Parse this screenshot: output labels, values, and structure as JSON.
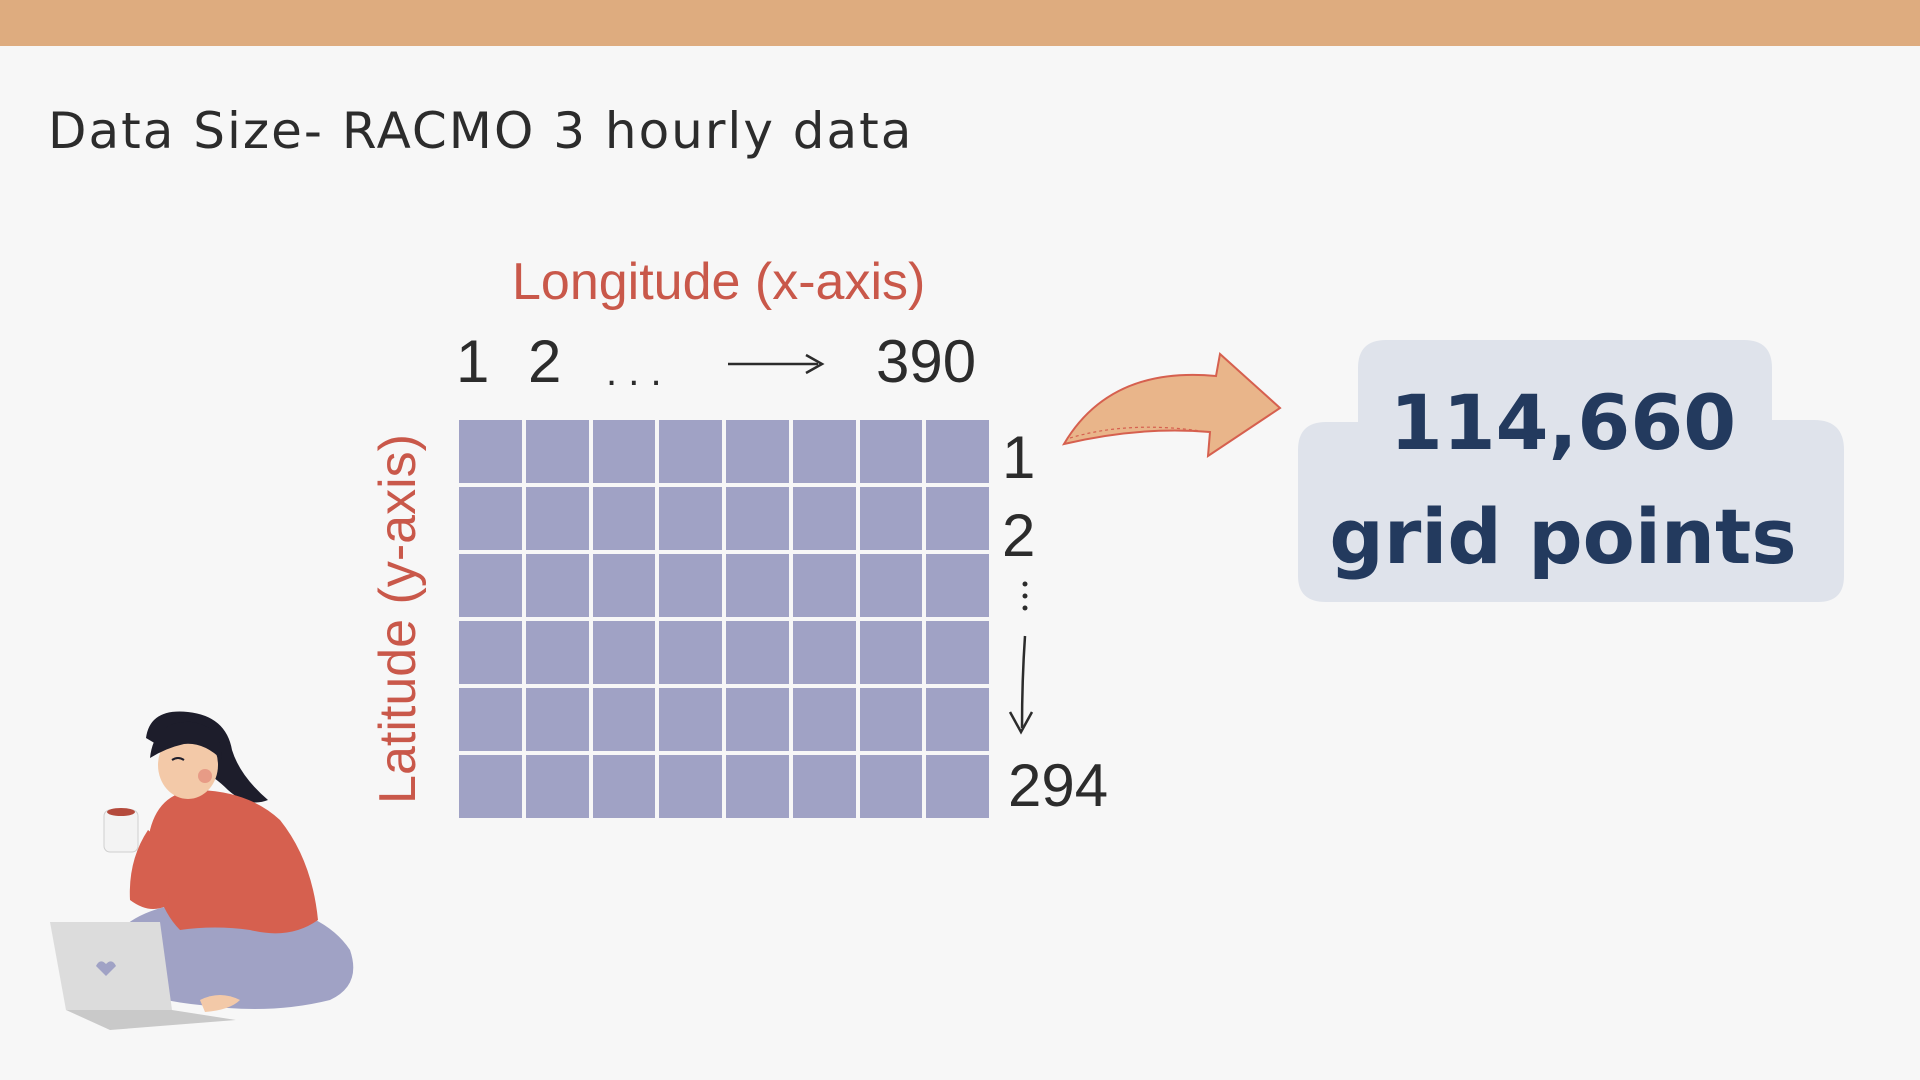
{
  "title": "Data Size- RACMO 3 hourly data",
  "x_axis": {
    "label": "Longitude (x-axis)",
    "ticks": [
      "1",
      "2",
      ". . .",
      "390"
    ]
  },
  "y_axis": {
    "label": "Latitude (y-axis)",
    "ticks": [
      "1",
      "2",
      "294"
    ]
  },
  "grid": {
    "shown_rows": 6,
    "shown_columns": 8
  },
  "result": {
    "value": "114,660",
    "unit": "grid points"
  },
  "colors": {
    "top_bar": "#deac7f",
    "axis_labels": "#c9584a",
    "grid_cells": "#a0a2c5",
    "result_bubble": "#dfe3eb",
    "result_text": "#233a5e",
    "arrow_fill": "#e9b58a",
    "arrow_stroke": "#d6604f"
  },
  "illustration": {
    "description_icon": "woman-with-coffee-and-laptop-illustration"
  }
}
